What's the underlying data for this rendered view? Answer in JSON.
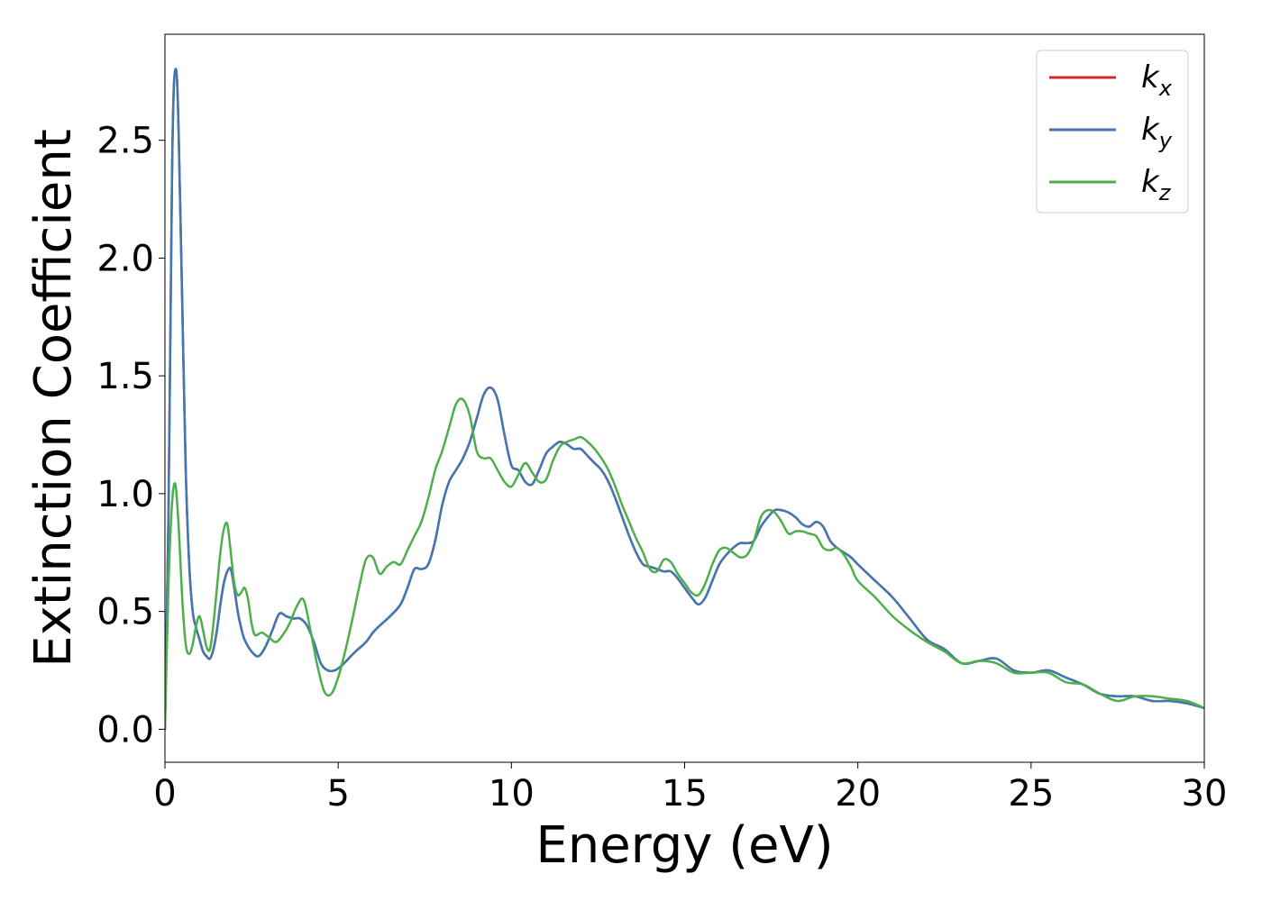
{
  "chart_data": {
    "type": "line",
    "title": "",
    "xlabel": "Energy (eV)",
    "ylabel": "Extinction Coefficient",
    "xlim": [
      0,
      30
    ],
    "ylim": [
      -0.14,
      2.95
    ],
    "xticks": [
      0,
      5,
      10,
      15,
      20,
      25,
      30
    ],
    "xtick_labels": [
      "0",
      "5",
      "10",
      "15",
      "20",
      "25",
      "30"
    ],
    "yticks": [
      0.0,
      0.5,
      1.0,
      1.5,
      2.0,
      2.5
    ],
    "ytick_labels": [
      "0.0",
      "0.5",
      "1.0",
      "1.5",
      "2.0",
      "2.5"
    ],
    "grid": false,
    "legend_position": "top-right",
    "series": [
      {
        "name": "kx",
        "legend_base": "k",
        "legend_sub": "x",
        "color": "#d62728",
        "x": [
          0,
          0.1,
          0.2,
          0.25,
          0.3,
          0.35,
          0.4,
          0.5,
          0.6,
          0.7,
          0.8,
          0.9,
          1.0,
          1.1,
          1.2,
          1.3,
          1.4,
          1.5,
          1.6,
          1.7,
          1.8,
          1.9,
          2.0,
          2.1,
          2.2,
          2.3,
          2.5,
          2.7,
          2.9,
          3.1,
          3.3,
          3.5,
          3.7,
          3.9,
          4.1,
          4.3,
          4.5,
          4.7,
          4.9,
          5.1,
          5.3,
          5.5,
          5.8,
          6.0,
          6.2,
          6.5,
          6.8,
          7.0,
          7.2,
          7.4,
          7.6,
          7.8,
          8.0,
          8.2,
          8.4,
          8.6,
          8.8,
          9.0,
          9.2,
          9.4,
          9.6,
          9.8,
          10.0,
          10.2,
          10.4,
          10.6,
          10.8,
          11.0,
          11.2,
          11.4,
          11.6,
          11.8,
          12.0,
          12.2,
          12.4,
          12.6,
          12.8,
          13.0,
          13.2,
          13.4,
          13.6,
          13.8,
          14.0,
          14.2,
          14.4,
          14.6,
          14.8,
          15.0,
          15.2,
          15.4,
          15.6,
          15.8,
          16.0,
          16.2,
          16.4,
          16.6,
          16.8,
          17.0,
          17.2,
          17.4,
          17.6,
          17.8,
          18.0,
          18.2,
          18.4,
          18.6,
          18.8,
          19.0,
          19.2,
          19.4,
          19.6,
          19.8,
          20.0,
          20.5,
          21.0,
          21.5,
          22.0,
          22.5,
          23.0,
          23.5,
          24.0,
          24.5,
          25.0,
          25.5,
          26.0,
          26.5,
          27.0,
          27.5,
          28.0,
          28.5,
          29.0,
          29.5,
          30.0
        ],
        "y": [
          0.0,
          0.9,
          2.3,
          2.7,
          2.8,
          2.75,
          2.5,
          1.8,
          1.1,
          0.7,
          0.5,
          0.43,
          0.38,
          0.33,
          0.31,
          0.3,
          0.34,
          0.42,
          0.53,
          0.62,
          0.67,
          0.68,
          0.6,
          0.5,
          0.43,
          0.38,
          0.33,
          0.31,
          0.35,
          0.42,
          0.49,
          0.48,
          0.47,
          0.47,
          0.44,
          0.37,
          0.28,
          0.25,
          0.25,
          0.27,
          0.3,
          0.33,
          0.37,
          0.41,
          0.44,
          0.48,
          0.53,
          0.6,
          0.68,
          0.68,
          0.7,
          0.8,
          0.95,
          1.05,
          1.1,
          1.15,
          1.22,
          1.32,
          1.42,
          1.45,
          1.4,
          1.25,
          1.12,
          1.1,
          1.05,
          1.04,
          1.1,
          1.17,
          1.2,
          1.22,
          1.21,
          1.19,
          1.19,
          1.16,
          1.13,
          1.1,
          1.05,
          0.98,
          0.9,
          0.82,
          0.75,
          0.7,
          0.69,
          0.68,
          0.67,
          0.67,
          0.64,
          0.6,
          0.56,
          0.53,
          0.56,
          0.63,
          0.7,
          0.74,
          0.77,
          0.79,
          0.79,
          0.8,
          0.86,
          0.9,
          0.93,
          0.93,
          0.92,
          0.9,
          0.87,
          0.86,
          0.88,
          0.86,
          0.8,
          0.77,
          0.75,
          0.73,
          0.7,
          0.63,
          0.56,
          0.47,
          0.38,
          0.34,
          0.28,
          0.29,
          0.3,
          0.25,
          0.24,
          0.25,
          0.22,
          0.19,
          0.15,
          0.14,
          0.14,
          0.12,
          0.12,
          0.11,
          0.09
        ]
      },
      {
        "name": "ky",
        "legend_base": "k",
        "legend_sub": "y",
        "color": "#3f78b5",
        "x": [
          0,
          0.1,
          0.2,
          0.25,
          0.3,
          0.35,
          0.4,
          0.5,
          0.6,
          0.7,
          0.8,
          0.9,
          1.0,
          1.1,
          1.2,
          1.3,
          1.4,
          1.5,
          1.6,
          1.7,
          1.8,
          1.9,
          2.0,
          2.1,
          2.2,
          2.3,
          2.5,
          2.7,
          2.9,
          3.1,
          3.3,
          3.5,
          3.7,
          3.9,
          4.1,
          4.3,
          4.5,
          4.7,
          4.9,
          5.1,
          5.3,
          5.5,
          5.8,
          6.0,
          6.2,
          6.5,
          6.8,
          7.0,
          7.2,
          7.4,
          7.6,
          7.8,
          8.0,
          8.2,
          8.4,
          8.6,
          8.8,
          9.0,
          9.2,
          9.4,
          9.6,
          9.8,
          10.0,
          10.2,
          10.4,
          10.6,
          10.8,
          11.0,
          11.2,
          11.4,
          11.6,
          11.8,
          12.0,
          12.2,
          12.4,
          12.6,
          12.8,
          13.0,
          13.2,
          13.4,
          13.6,
          13.8,
          14.0,
          14.2,
          14.4,
          14.6,
          14.8,
          15.0,
          15.2,
          15.4,
          15.6,
          15.8,
          16.0,
          16.2,
          16.4,
          16.6,
          16.8,
          17.0,
          17.2,
          17.4,
          17.6,
          17.8,
          18.0,
          18.2,
          18.4,
          18.6,
          18.8,
          19.0,
          19.2,
          19.4,
          19.6,
          19.8,
          20.0,
          20.5,
          21.0,
          21.5,
          22.0,
          22.5,
          23.0,
          23.5,
          24.0,
          24.5,
          25.0,
          25.5,
          26.0,
          26.5,
          27.0,
          27.5,
          28.0,
          28.5,
          29.0,
          29.5,
          30.0
        ],
        "y": [
          0.0,
          0.9,
          2.3,
          2.7,
          2.8,
          2.75,
          2.5,
          1.8,
          1.1,
          0.7,
          0.5,
          0.43,
          0.38,
          0.33,
          0.31,
          0.3,
          0.34,
          0.42,
          0.53,
          0.62,
          0.67,
          0.68,
          0.6,
          0.5,
          0.43,
          0.38,
          0.33,
          0.31,
          0.35,
          0.42,
          0.49,
          0.48,
          0.47,
          0.47,
          0.44,
          0.37,
          0.28,
          0.25,
          0.25,
          0.27,
          0.3,
          0.33,
          0.37,
          0.41,
          0.44,
          0.48,
          0.53,
          0.6,
          0.68,
          0.68,
          0.7,
          0.8,
          0.95,
          1.05,
          1.1,
          1.15,
          1.22,
          1.32,
          1.42,
          1.45,
          1.4,
          1.25,
          1.12,
          1.1,
          1.05,
          1.04,
          1.1,
          1.17,
          1.2,
          1.22,
          1.21,
          1.19,
          1.19,
          1.16,
          1.13,
          1.1,
          1.05,
          0.98,
          0.9,
          0.82,
          0.75,
          0.7,
          0.69,
          0.68,
          0.67,
          0.67,
          0.64,
          0.6,
          0.56,
          0.53,
          0.56,
          0.63,
          0.7,
          0.74,
          0.77,
          0.79,
          0.79,
          0.8,
          0.86,
          0.9,
          0.93,
          0.93,
          0.92,
          0.9,
          0.87,
          0.86,
          0.88,
          0.86,
          0.8,
          0.77,
          0.75,
          0.73,
          0.7,
          0.63,
          0.56,
          0.47,
          0.38,
          0.34,
          0.28,
          0.29,
          0.3,
          0.25,
          0.24,
          0.25,
          0.22,
          0.19,
          0.15,
          0.14,
          0.14,
          0.12,
          0.12,
          0.11,
          0.09
        ]
      },
      {
        "name": "kz",
        "legend_base": "k",
        "legend_sub": "z",
        "color": "#4daf4a",
        "x": [
          0,
          0.1,
          0.2,
          0.3,
          0.4,
          0.5,
          0.6,
          0.7,
          0.8,
          0.9,
          1.0,
          1.1,
          1.2,
          1.3,
          1.4,
          1.5,
          1.6,
          1.7,
          1.8,
          1.9,
          2.0,
          2.1,
          2.2,
          2.3,
          2.4,
          2.5,
          2.6,
          2.8,
          3.0,
          3.2,
          3.4,
          3.6,
          3.8,
          4.0,
          4.2,
          4.4,
          4.6,
          4.8,
          5.0,
          5.2,
          5.4,
          5.6,
          5.8,
          6.0,
          6.2,
          6.4,
          6.6,
          6.8,
          7.0,
          7.2,
          7.4,
          7.6,
          7.8,
          8.0,
          8.2,
          8.4,
          8.6,
          8.8,
          9.0,
          9.2,
          9.4,
          9.6,
          9.8,
          10.0,
          10.2,
          10.4,
          10.6,
          10.8,
          11.0,
          11.2,
          11.4,
          11.6,
          11.8,
          12.0,
          12.2,
          12.4,
          12.6,
          12.8,
          13.0,
          13.2,
          13.4,
          13.6,
          13.8,
          14.0,
          14.2,
          14.4,
          14.6,
          14.8,
          15.0,
          15.2,
          15.4,
          15.6,
          15.8,
          16.0,
          16.2,
          16.4,
          16.6,
          16.8,
          17.0,
          17.2,
          17.4,
          17.6,
          17.8,
          18.0,
          18.2,
          18.4,
          18.6,
          18.8,
          19.0,
          19.2,
          19.4,
          19.6,
          19.8,
          20.0,
          20.5,
          21.0,
          21.5,
          22.0,
          22.5,
          23.0,
          23.5,
          24.0,
          24.5,
          25.0,
          25.5,
          26.0,
          26.5,
          27.0,
          27.5,
          28.0,
          28.5,
          29.0,
          29.5,
          30.0
        ],
        "y": [
          0.0,
          0.6,
          0.95,
          1.04,
          0.85,
          0.55,
          0.36,
          0.32,
          0.36,
          0.44,
          0.48,
          0.42,
          0.35,
          0.34,
          0.45,
          0.6,
          0.75,
          0.85,
          0.87,
          0.75,
          0.62,
          0.57,
          0.58,
          0.6,
          0.55,
          0.45,
          0.4,
          0.41,
          0.39,
          0.37,
          0.4,
          0.45,
          0.52,
          0.55,
          0.42,
          0.27,
          0.16,
          0.15,
          0.22,
          0.33,
          0.46,
          0.6,
          0.72,
          0.73,
          0.66,
          0.69,
          0.71,
          0.7,
          0.76,
          0.82,
          0.88,
          0.98,
          1.1,
          1.18,
          1.28,
          1.38,
          1.4,
          1.33,
          1.18,
          1.15,
          1.15,
          1.1,
          1.05,
          1.03,
          1.08,
          1.13,
          1.09,
          1.05,
          1.06,
          1.14,
          1.2,
          1.22,
          1.23,
          1.24,
          1.22,
          1.19,
          1.15,
          1.1,
          1.03,
          0.95,
          0.88,
          0.81,
          0.75,
          0.68,
          0.67,
          0.72,
          0.71,
          0.66,
          0.62,
          0.58,
          0.57,
          0.62,
          0.7,
          0.76,
          0.77,
          0.75,
          0.73,
          0.74,
          0.8,
          0.9,
          0.93,
          0.92,
          0.88,
          0.83,
          0.84,
          0.84,
          0.83,
          0.82,
          0.77,
          0.76,
          0.77,
          0.74,
          0.69,
          0.63,
          0.56,
          0.48,
          0.42,
          0.37,
          0.33,
          0.28,
          0.29,
          0.28,
          0.24,
          0.24,
          0.24,
          0.2,
          0.19,
          0.15,
          0.12,
          0.14,
          0.14,
          0.13,
          0.12,
          0.09
        ]
      }
    ]
  }
}
